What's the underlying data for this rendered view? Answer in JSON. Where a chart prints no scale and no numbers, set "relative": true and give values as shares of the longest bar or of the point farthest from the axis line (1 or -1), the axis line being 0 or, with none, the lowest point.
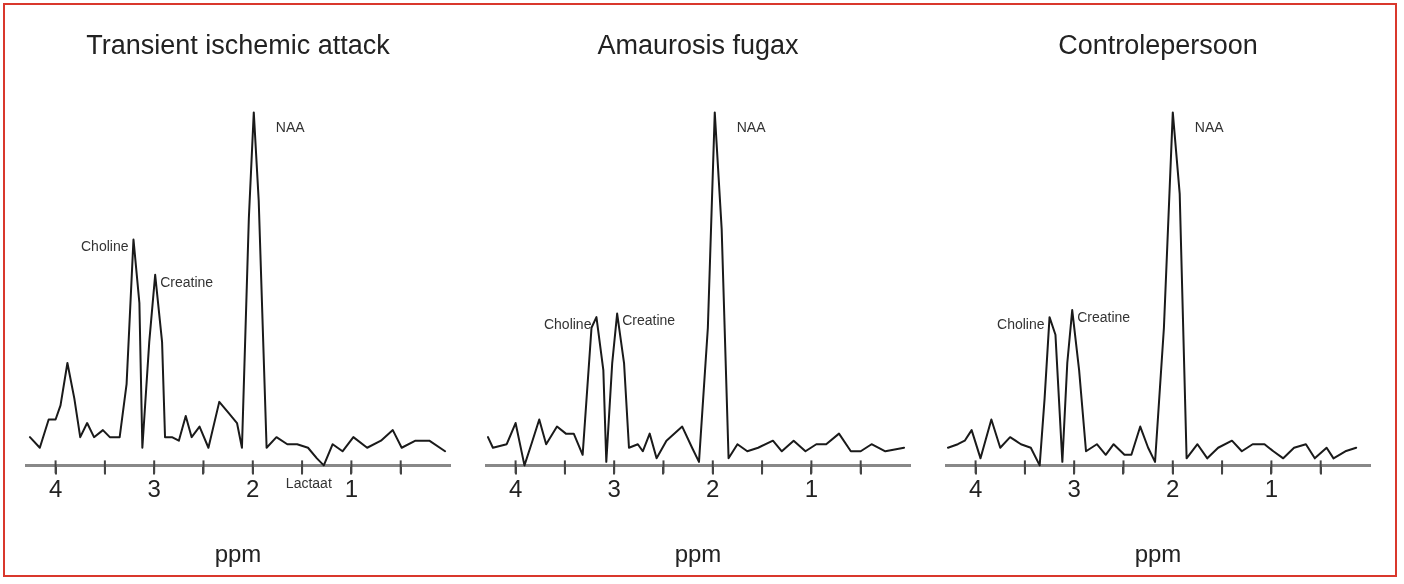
{
  "chart_data": [
    {
      "type": "line",
      "title": "Transient ischemic attack",
      "xlabel": "ppm",
      "relative": true,
      "xlim": [
        4.3,
        0
      ],
      "xticks": [
        4,
        {
          "value": 3.5,
          "label": null
        },
        3,
        {
          "value": 2.5,
          "label": null
        },
        2,
        {
          "value": 1.5,
          "label": null
        },
        1,
        {
          "value": 0.5,
          "label": null
        }
      ],
      "grid": false,
      "legend": false,
      "marker": "none",
      "line_style": "solid",
      "color": "#1a1a1a",
      "x": [
        4.26,
        4.16,
        4.07,
        4.0,
        3.95,
        3.88,
        3.81,
        3.75,
        3.68,
        3.61,
        3.52,
        3.45,
        3.35,
        3.28,
        3.21,
        3.15,
        3.12,
        3.05,
        2.99,
        2.92,
        2.89,
        2.82,
        2.75,
        2.68,
        2.62,
        2.54,
        2.45,
        2.34,
        2.25,
        2.16,
        2.11,
        2.04,
        1.99,
        1.94,
        1.86,
        1.76,
        1.65,
        1.55,
        1.44,
        1.35,
        1.28,
        1.19,
        1.09,
        0.98,
        0.84,
        0.7,
        0.58,
        0.49,
        0.35,
        0.21,
        0.05
      ],
      "values": [
        0.08,
        0.05,
        0.13,
        0.13,
        0.17,
        0.29,
        0.19,
        0.08,
        0.12,
        0.08,
        0.1,
        0.08,
        0.08,
        0.23,
        0.64,
        0.46,
        0.05,
        0.35,
        0.54,
        0.35,
        0.08,
        0.08,
        0.07,
        0.14,
        0.08,
        0.11,
        0.05,
        0.18,
        0.15,
        0.12,
        0.05,
        0.7,
        1.0,
        0.75,
        0.05,
        0.08,
        0.06,
        0.06,
        0.05,
        0.02,
        0.0,
        0.06,
        0.04,
        0.08,
        0.05,
        0.07,
        0.1,
        0.05,
        0.07,
        0.07,
        0.04
      ],
      "annotations": [
        {
          "text": "Choline",
          "x": 3.21,
          "y": 0.64
        },
        {
          "text": "Creatine",
          "x": 2.99,
          "y": 0.54
        },
        {
          "text": "NAA",
          "x": 1.99,
          "y": 1.0
        },
        {
          "text": "Lactaat",
          "x": 1.28,
          "y": 0.0
        }
      ]
    },
    {
      "type": "line",
      "title": "Amaurosis fugax",
      "xlabel": "ppm",
      "relative": true,
      "xlim": [
        4.3,
        0
      ],
      "xticks": [
        4,
        {
          "value": 3.5,
          "label": null
        },
        3,
        {
          "value": 2.5,
          "label": null
        },
        2,
        {
          "value": 1.5,
          "label": null
        },
        1,
        {
          "value": 0.5,
          "label": null
        }
      ],
      "grid": false,
      "legend": false,
      "marker": "none",
      "line_style": "solid",
      "color": "#1a1a1a",
      "x": [
        4.28,
        4.23,
        4.09,
        4.0,
        3.91,
        3.84,
        3.76,
        3.69,
        3.58,
        3.49,
        3.41,
        3.32,
        3.23,
        3.18,
        3.11,
        3.08,
        3.02,
        2.97,
        2.9,
        2.85,
        2.76,
        2.71,
        2.64,
        2.57,
        2.47,
        2.31,
        2.21,
        2.14,
        2.05,
        1.98,
        1.91,
        1.84,
        1.75,
        1.65,
        1.54,
        1.39,
        1.3,
        1.18,
        1.06,
        0.95,
        0.85,
        0.72,
        0.6,
        0.5,
        0.39,
        0.25,
        0.06
      ],
      "values": [
        0.08,
        0.05,
        0.06,
        0.12,
        0.0,
        0.06,
        0.13,
        0.06,
        0.11,
        0.09,
        0.09,
        0.03,
        0.39,
        0.42,
        0.27,
        0.01,
        0.29,
        0.43,
        0.29,
        0.05,
        0.06,
        0.04,
        0.09,
        0.02,
        0.07,
        0.11,
        0.05,
        0.01,
        0.39,
        1.0,
        0.67,
        0.02,
        0.06,
        0.04,
        0.05,
        0.07,
        0.04,
        0.07,
        0.04,
        0.06,
        0.06,
        0.09,
        0.04,
        0.04,
        0.06,
        0.04,
        0.05
      ],
      "annotations": [
        {
          "text": "Choline",
          "x": 3.18,
          "y": 0.42
        },
        {
          "text": "Creatine",
          "x": 2.97,
          "y": 0.43
        },
        {
          "text": "NAA",
          "x": 1.98,
          "y": 1.0
        }
      ]
    },
    {
      "type": "line",
      "title": "Controlepersoon",
      "xlabel": "ppm",
      "relative": true,
      "xlim": [
        4.3,
        0
      ],
      "xticks": [
        4,
        {
          "value": 3.5,
          "label": null
        },
        3,
        {
          "value": 2.5,
          "label": null
        },
        2,
        {
          "value": 1.5,
          "label": null
        },
        1,
        {
          "value": 0.5,
          "label": null
        }
      ],
      "grid": false,
      "legend": false,
      "marker": "none",
      "line_style": "solid",
      "color": "#1a1a1a",
      "x": [
        4.28,
        4.18,
        4.11,
        4.04,
        3.95,
        3.84,
        3.75,
        3.65,
        3.54,
        3.44,
        3.35,
        3.3,
        3.25,
        3.19,
        3.12,
        3.07,
        3.02,
        2.95,
        2.88,
        2.77,
        2.68,
        2.6,
        2.49,
        2.42,
        2.33,
        2.25,
        2.18,
        2.09,
        2.0,
        1.93,
        1.86,
        1.75,
        1.65,
        1.54,
        1.4,
        1.3,
        1.19,
        1.07,
        0.98,
        0.88,
        0.77,
        0.65,
        0.56,
        0.44,
        0.37,
        0.25,
        0.14
      ],
      "values": [
        0.05,
        0.06,
        0.07,
        0.1,
        0.02,
        0.13,
        0.05,
        0.08,
        0.06,
        0.05,
        0.0,
        0.19,
        0.42,
        0.37,
        0.01,
        0.29,
        0.44,
        0.27,
        0.04,
        0.06,
        0.03,
        0.06,
        0.03,
        0.03,
        0.11,
        0.05,
        0.01,
        0.39,
        1.0,
        0.77,
        0.02,
        0.06,
        0.02,
        0.05,
        0.07,
        0.04,
        0.06,
        0.06,
        0.04,
        0.02,
        0.05,
        0.06,
        0.02,
        0.05,
        0.02,
        0.04,
        0.05
      ],
      "annotations": [
        {
          "text": "Choline",
          "x": 3.25,
          "y": 0.42
        },
        {
          "text": "Creatine",
          "x": 3.02,
          "y": 0.44
        },
        {
          "text": "NAA",
          "x": 2.0,
          "y": 1.0
        }
      ]
    }
  ]
}
